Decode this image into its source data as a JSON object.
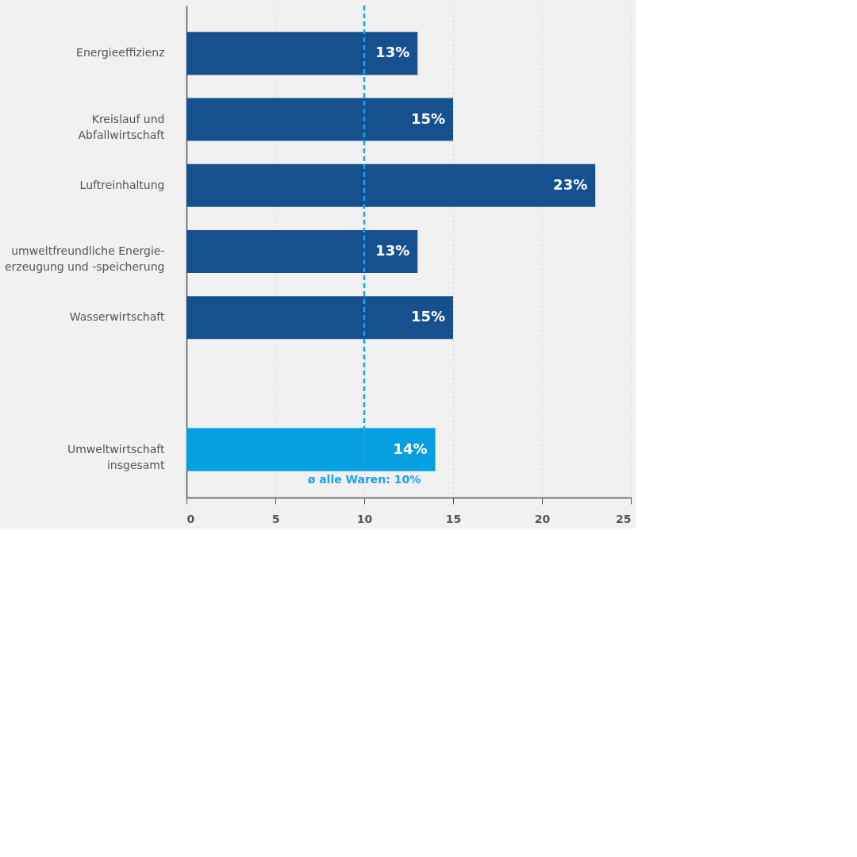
{
  "chart_data": {
    "type": "bar",
    "orientation": "horizontal",
    "categories": [
      "Energieeffizienz",
      "Kreislauf und\nAbfallwirtschaft",
      "Luftreinhaltung",
      "umweltfreundliche Energie-\nerzeugung und -speicherung",
      "Wasserwirtschaft",
      null,
      "Umweltwirtschaft\ninsgesamt"
    ],
    "values": [
      13,
      15,
      23,
      13,
      15,
      null,
      14
    ],
    "colors": [
      "#17508f",
      "#17508f",
      "#17508f",
      "#17508f",
      "#17508f",
      "#17508f",
      "#06a0e0"
    ],
    "value_labels": [
      "13%",
      "15%",
      "23%",
      "13%",
      "15%",
      null,
      "14%"
    ],
    "xlim": [
      0,
      25
    ],
    "xticks": [
      0,
      5,
      10,
      15,
      20,
      25
    ],
    "grid": "x",
    "ref_lines": [
      {
        "axis": "x",
        "value": 10,
        "label": "ø alle Waren: 10%",
        "color": "#1aa3e8",
        "line_style": "dashed"
      }
    ]
  }
}
